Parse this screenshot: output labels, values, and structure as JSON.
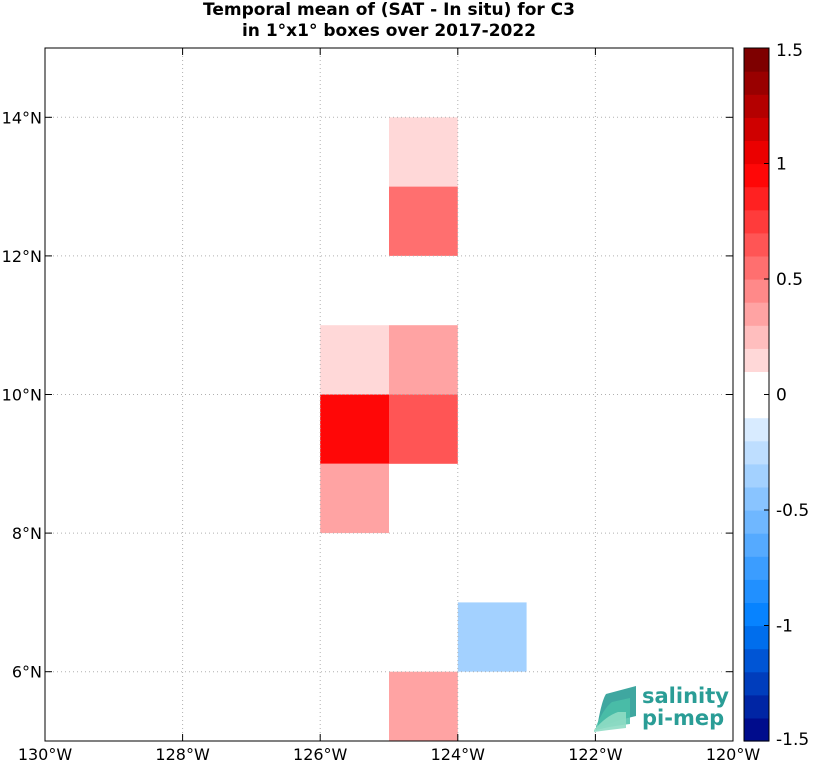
{
  "chart_data": {
    "type": "heatmap",
    "title_line1": "Temporal mean of (SAT - In situ) for C3",
    "title_line2": "in 1°x1° boxes over 2017-2022",
    "lon_range": [
      -130,
      -120
    ],
    "lat_range": [
      5,
      15
    ],
    "x_ticks": [
      {
        "value": -130,
        "label": "130°W"
      },
      {
        "value": -128,
        "label": "128°W"
      },
      {
        "value": -126,
        "label": "126°W"
      },
      {
        "value": -124,
        "label": "124°W"
      },
      {
        "value": -122,
        "label": "122°W"
      },
      {
        "value": -120,
        "label": "120°W"
      }
    ],
    "y_ticks": [
      {
        "value": 6,
        "label": "6°N"
      },
      {
        "value": 8,
        "label": "8°N"
      },
      {
        "value": 10,
        "label": "10°N"
      },
      {
        "value": 12,
        "label": "12°N"
      },
      {
        "value": 14,
        "label": "14°N"
      }
    ],
    "grid": true,
    "cells": [
      {
        "lon": -125,
        "lat": 13,
        "value": 0.15
      },
      {
        "lon": -125,
        "lat": 12,
        "value": 0.55
      },
      {
        "lon": -126,
        "lat": 10,
        "value": 0.15
      },
      {
        "lon": -125,
        "lat": 10,
        "value": 0.3
      },
      {
        "lon": -126,
        "lat": 9,
        "value": 0.95
      },
      {
        "lon": -125,
        "lat": 9,
        "value": 0.65
      },
      {
        "lon": -126,
        "lat": 8,
        "value": 0.4
      },
      {
        "lon": -124,
        "lat": 6,
        "value": -0.3
      },
      {
        "lon": -125,
        "lat": 5,
        "value": 0.3
      }
    ],
    "colorbar": {
      "min": -1.5,
      "max": 1.5,
      "levels": 30,
      "ticks": [
        {
          "value": 1.5,
          "label": "1.5"
        },
        {
          "value": 1,
          "label": "1"
        },
        {
          "value": 0.5,
          "label": "0.5"
        },
        {
          "value": 0,
          "label": "0"
        },
        {
          "value": -0.5,
          "label": "-0.5"
        },
        {
          "value": -1,
          "label": "-1"
        },
        {
          "value": -1.5,
          "label": "-1.5"
        }
      ]
    }
  },
  "logo": {
    "line1": "salinity",
    "line2": "pi-mep",
    "color": "#2a9d96"
  }
}
